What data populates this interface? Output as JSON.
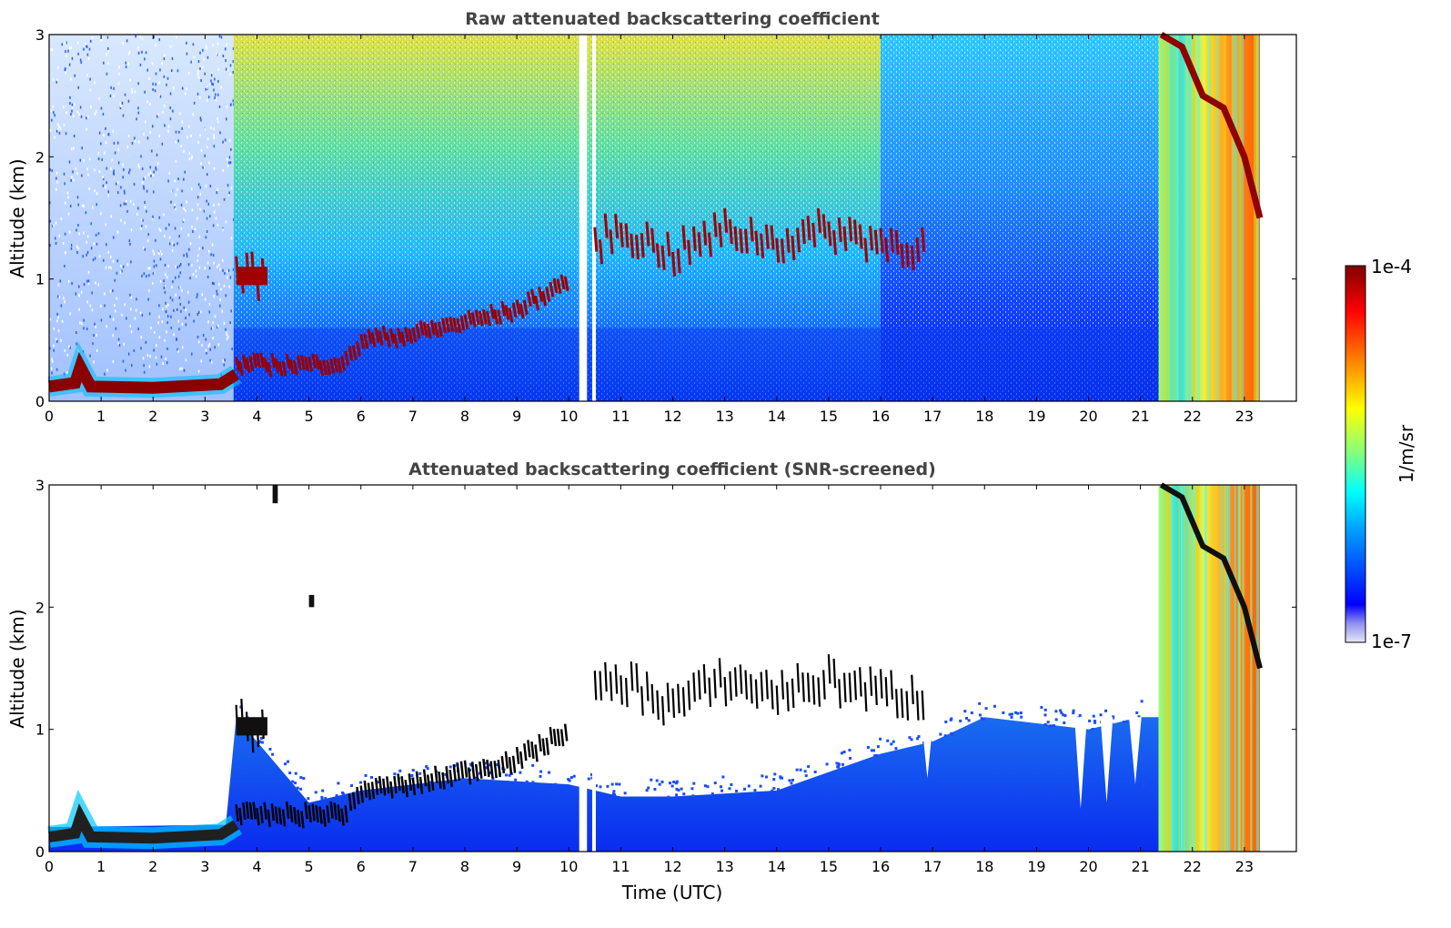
{
  "chart_data": [
    {
      "type": "heatmap",
      "title": "Raw attenuated backscattering coefficient",
      "xlabel": "",
      "ylabel": "Altitude (km)",
      "xlim": [
        0,
        24
      ],
      "ylim": [
        0,
        3
      ],
      "xticks": [
        "0",
        "1",
        "2",
        "3",
        "4",
        "5",
        "6",
        "7",
        "8",
        "9",
        "10",
        "11",
        "12",
        "13",
        "14",
        "15",
        "16",
        "17",
        "18",
        "19",
        "20",
        "21",
        "22",
        "23"
      ],
      "yticks": [
        "0",
        "1",
        "2",
        "3"
      ],
      "data_end_hour": 23.3,
      "gaps_hours": [
        [
          10.2,
          10.35
        ],
        [
          10.45,
          10.52
        ]
      ],
      "features": {
        "boundary_layer": [
          [
            0,
            0.12
          ],
          [
            0.5,
            0.15
          ],
          [
            0.6,
            0.28
          ],
          [
            0.8,
            0.12
          ],
          [
            2,
            0.11
          ],
          [
            3.3,
            0.14
          ],
          [
            3.6,
            0.22
          ]
        ],
        "aerosol_layer": [
          [
            3.6,
            0.3
          ],
          [
            4,
            0.3
          ],
          [
            5,
            0.3
          ],
          [
            5.7,
            0.32
          ],
          [
            6,
            0.5
          ],
          [
            7,
            0.55
          ],
          [
            8,
            0.65
          ],
          [
            9,
            0.75
          ],
          [
            10,
            1.0
          ]
        ],
        "cloud_top": [
          [
            3.6,
            1.05
          ],
          [
            4.2,
            1.0
          ],
          [
            10.5,
            1.3
          ],
          [
            11,
            1.4
          ],
          [
            12,
            1.2
          ],
          [
            13,
            1.4
          ],
          [
            14,
            1.3
          ],
          [
            15,
            1.4
          ],
          [
            16,
            1.3
          ],
          [
            16.9,
            1.25
          ]
        ],
        "descending_cloud": [
          [
            21.4,
            3.0
          ],
          [
            21.8,
            2.9
          ],
          [
            22.2,
            2.5
          ],
          [
            22.6,
            2.4
          ],
          [
            23.0,
            2.0
          ],
          [
            23.3,
            1.5
          ]
        ]
      }
    },
    {
      "type": "heatmap",
      "title": "Attenuated backscattering coefficient (SNR-screened)",
      "xlabel": "Time (UTC)",
      "ylabel": "Altitude (km)",
      "xlim": [
        0,
        24
      ],
      "ylim": [
        0,
        3
      ],
      "xticks": [
        "0",
        "1",
        "2",
        "3",
        "4",
        "5",
        "6",
        "7",
        "8",
        "9",
        "10",
        "11",
        "12",
        "13",
        "14",
        "15",
        "16",
        "17",
        "18",
        "19",
        "20",
        "21",
        "22",
        "23"
      ],
      "yticks": [
        "0",
        "1",
        "2",
        "3"
      ],
      "data_end_hour": 23.3,
      "screened_top_km": [
        [
          0,
          0.2
        ],
        [
          3.4,
          0.22
        ],
        [
          3.6,
          1.1
        ],
        [
          4,
          0.9
        ],
        [
          5,
          0.4
        ],
        [
          6,
          0.5
        ],
        [
          8,
          0.6
        ],
        [
          10,
          0.55
        ],
        [
          11,
          0.45
        ],
        [
          12,
          0.45
        ],
        [
          14,
          0.5
        ],
        [
          16,
          0.8
        ],
        [
          17,
          0.9
        ],
        [
          18,
          1.1
        ],
        [
          20,
          1.0
        ],
        [
          21,
          1.1
        ]
      ]
    }
  ],
  "colorbar": {
    "label": "1/m/sr",
    "max_label": "1e-4",
    "min_label": "1e-7",
    "scale": "log",
    "colormap": "jet",
    "colors": [
      "#e6e6f5",
      "#0000ff",
      "#00a0ff",
      "#00ffff",
      "#80ff80",
      "#ffff00",
      "#ff8000",
      "#ff0000",
      "#800000"
    ]
  }
}
